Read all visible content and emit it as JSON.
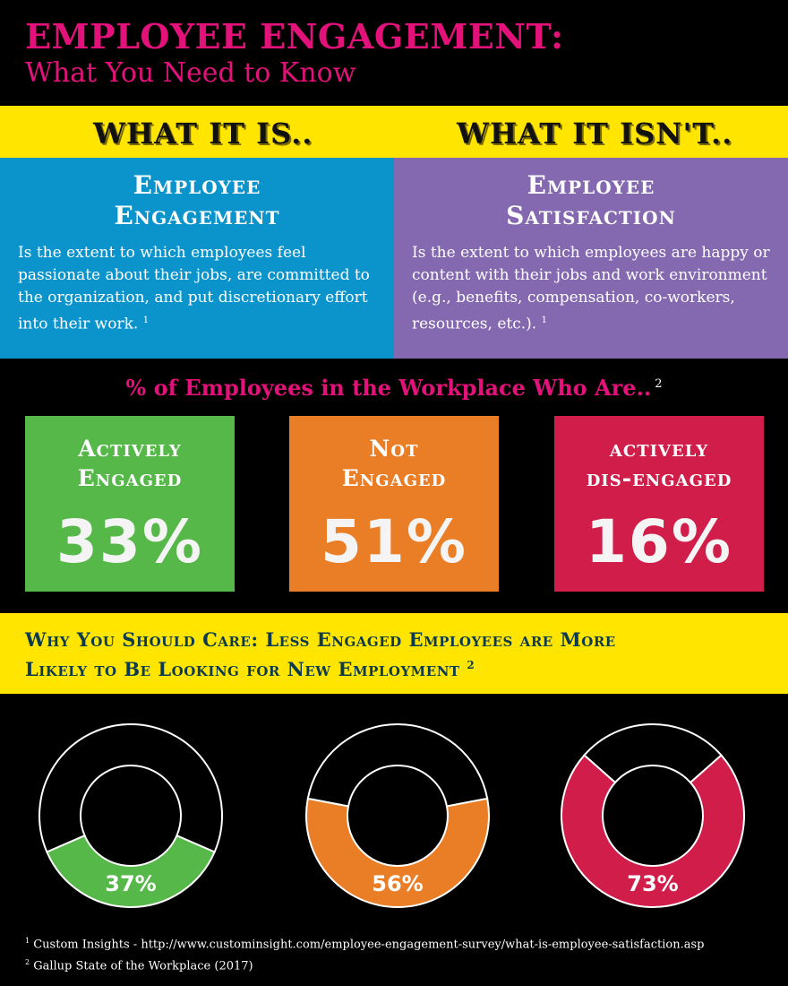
{
  "header": {
    "title": "EMPLOYEE ENGAGEMENT:",
    "subtitle": "What You Need to Know"
  },
  "comparison": {
    "left_heading": "WHAT IT IS..",
    "right_heading": "WHAT IT ISN'T.."
  },
  "definitions": {
    "engagement": {
      "title_line1": "Employee",
      "title_line2": "Engagement",
      "text": "Is the extent to which employees feel passionate about their jobs, are committed to the organization, and put discretionary effort into their work.",
      "ref": "1"
    },
    "satisfaction": {
      "title_line1": "Employee",
      "title_line2": "Satisfaction",
      "text": "Is the extent to which employees are happy or content with their jobs and work environment (e.g., benefits, compensation, co-workers, resources, etc.).",
      "ref": "1"
    }
  },
  "percent_section": {
    "heading": "% of Employees in the Workplace Who Are..",
    "ref": "2",
    "stats": [
      {
        "label_line1": "Actively",
        "label_line2": "Engaged",
        "value": "33%",
        "color": "#55b848"
      },
      {
        "label_line1": "Not",
        "label_line2": "Engaged",
        "value": "51%",
        "color": "#ea7e27"
      },
      {
        "label_line1": "actively",
        "label_line2": "dis-engaged",
        "value": "16%",
        "color": "#d01d4a"
      }
    ]
  },
  "care_section": {
    "line1": "Why You Should Care:  Less Engaged Employees are More",
    "line2": "Likely to Be Looking for New Employment",
    "ref": "2"
  },
  "chart_data": {
    "type": "pie",
    "categories": [
      "Actively Engaged",
      "Not Engaged",
      "Actively Dis-engaged"
    ],
    "values": [
      37,
      56,
      73
    ],
    "value_labels": [
      "37%",
      "56%",
      "73%"
    ],
    "colors": [
      "#55b848",
      "#ea7e27",
      "#d01d4a"
    ],
    "title": "Why You Should Care:  Less Engaged Employees are More Likely to Be Looking for New Employment"
  },
  "footnotes": {
    "note1_ref": "1",
    "note1": "Custom Insights - http://www.custominsight.com/employee-engagement-survey/what-is-employee-satisfaction.asp",
    "note2_ref": "2",
    "note2": "Gallup State of the Workplace (2017)"
  }
}
